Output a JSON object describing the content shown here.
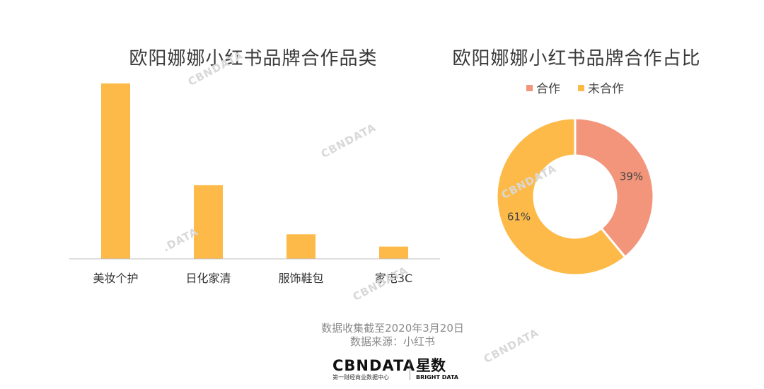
{
  "bar_chart_title": "欧阳娜娜小红书品牌合作品类",
  "donut_chart_title": "欧阳娜娜小红书品牌合作占比",
  "notes": {
    "date": "数据收集截至2020年3月20日",
    "source": "数据来源：小红书"
  },
  "logos": {
    "cbndata": "CBNDATA",
    "cbndata_sub": "第一财经商业数据中心",
    "star": "星数",
    "star_sub": "BRIGHT DATA"
  },
  "watermarks": [
    "CBNDATA",
    "CBNDATA",
    ".DATA",
    "CBNDATA",
    "CBNDATA",
    "CBNDATA"
  ],
  "colors": {
    "bar": "#FDBA48",
    "cooperated": "#F2957B",
    "not_cooperated": "#FDBA48",
    "axis": "#bfbfbf"
  },
  "chart_data": [
    {
      "type": "bar",
      "title": "欧阳娜娜小红书品牌合作品类",
      "categories": [
        "美妆个护",
        "日化家清",
        "服饰鞋包",
        "家电3C"
      ],
      "values": [
        100,
        42,
        14,
        7
      ],
      "ylim": [
        0,
        100
      ],
      "grid": false,
      "legend": "none",
      "axis_ticks_shown": false
    },
    {
      "type": "pie",
      "subtype": "donut",
      "title": "欧阳娜娜小红书品牌合作占比",
      "labels": [
        "合作",
        "未合作"
      ],
      "values": [
        39,
        61
      ],
      "data_labels": [
        "39%",
        "61%"
      ],
      "legend": "top"
    }
  ]
}
